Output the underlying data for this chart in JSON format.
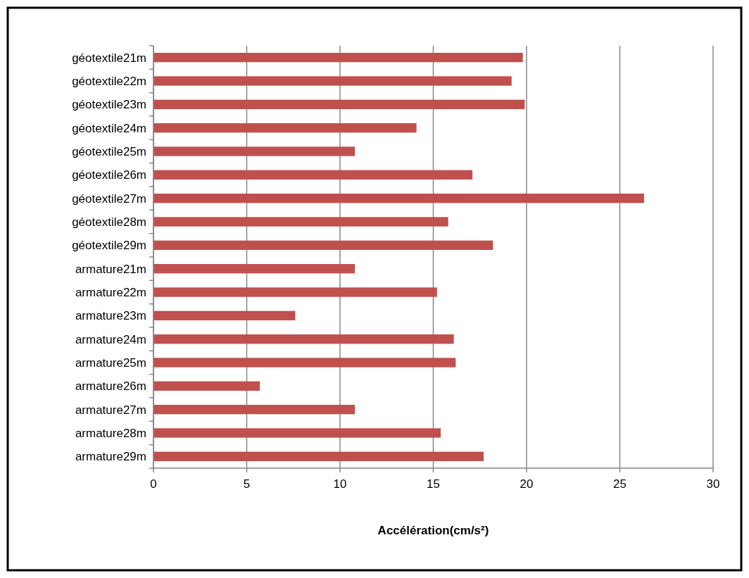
{
  "chart_data": {
    "type": "bar",
    "orientation": "horizontal",
    "xlabel": "Accélération(cm/s²)",
    "categories": [
      "géotextile21m",
      "géotextile22m",
      "géotextile23m",
      "géotextile24m",
      "géotextile25m",
      "géotextile26m",
      "géotextile27m",
      "géotextile28m",
      "géotextile29m",
      "armature21m",
      "armature22m",
      "armature23m",
      "armature24m",
      "armature25m",
      "armature26m",
      "armature27m",
      "armature28m",
      "armature29m"
    ],
    "values": [
      19.8,
      19.2,
      19.9,
      14.1,
      10.8,
      17.1,
      26.3,
      15.8,
      18.2,
      10.8,
      15.2,
      7.6,
      16.1,
      16.2,
      5.7,
      10.8,
      15.4,
      17.7
    ],
    "color": "#c0504d",
    "xlim": [
      0,
      30
    ],
    "xticks": [
      0,
      5,
      10,
      15,
      20,
      25,
      30
    ],
    "grid": "x"
  }
}
